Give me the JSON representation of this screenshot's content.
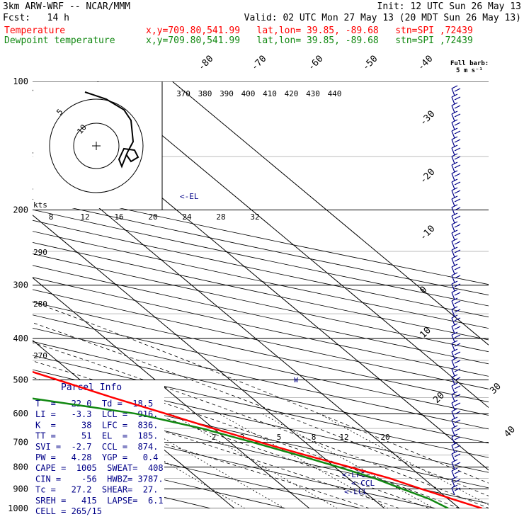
{
  "header": {
    "model": "3km ARW-WRF -- NCAR/MMM",
    "init": "Init: 12 UTC Sun 26 May 13",
    "fcst": "Fcst:   14 h",
    "valid": "Valid: 02 UTC Mon 27 May 13 (20 MDT Sun 26 May 13)",
    "temp_label": "Temperature",
    "dew_label": "Dewpoint temperature",
    "location": "x,y=709.80,541.99   lat,lon= 39.85, -89.68   stn=SPI ,72439"
  },
  "colors": {
    "temperature": "#ff0000",
    "dewpoint": "#118811",
    "text": "#000000",
    "info": "#000088",
    "wind": "#000088"
  },
  "parcel_info": {
    "title": "Parcel Info",
    "rows": [
      "T  =   22.0  Td =  18.5",
      "LI =   -3.3  LCL =  916.",
      "K  =     38  LFC =  836.",
      "TT =     51  EL  =  185.",
      "SVI =  -2.7  CCL =  874.",
      "PW =   4.28  YGP =   0.4",
      "CAPE =  1005  SWEAT=  408",
      "CIN =    -56  HWBZ= 3787.",
      "Tc =   27.2  SHEAR=  27.",
      "SREH =   415  LAPSE=  6.1",
      "CELL = 265/15"
    ]
  },
  "level_labels": {
    "el": "<-EL",
    "lfc": "<-LFC",
    "ccl": "<-CCL",
    "lcl": "<-LCL"
  },
  "barb_legend": {
    "title": "Full barb:",
    "value": "5 m s⁻¹"
  },
  "hodograph": {
    "units": "kts",
    "rings": [
      "5",
      "10"
    ]
  },
  "chart_data": {
    "type": "skew-t",
    "pressure_levels": [
      100,
      200,
      300,
      400,
      500,
      600,
      700,
      800,
      900,
      1000
    ],
    "isotherm_labels": [
      "-80",
      "-70",
      "-60",
      "-50",
      "-40",
      "-30",
      "-20",
      "-10",
      "0",
      "10",
      "20",
      "30",
      "40"
    ],
    "theta_labels": [
      "370",
      "380",
      "390",
      "400",
      "410",
      "420",
      "430",
      "440"
    ],
    "theta_lower_labels": [
      "290",
      "280",
      "270"
    ],
    "mixing_ratio_top_labels": [
      "8",
      "12",
      "16",
      "20",
      "24",
      "28",
      "32"
    ],
    "mixing_ratio_lower_labels": [
      "2",
      "3",
      "5",
      "8",
      "12",
      "20"
    ],
    "temperature": [
      {
        "p": 1000,
        "t": 23
      },
      {
        "p": 980,
        "t": 22
      },
      {
        "p": 950,
        "t": 20.5
      },
      {
        "p": 925,
        "t": 19.3
      },
      {
        "p": 900,
        "t": 18
      },
      {
        "p": 870,
        "t": 16.5
      },
      {
        "p": 850,
        "t": 15.5
      },
      {
        "p": 800,
        "t": 12
      },
      {
        "p": 750,
        "t": 8
      },
      {
        "p": 700,
        "t": 4
      },
      {
        "p": 650,
        "t": 0
      },
      {
        "p": 600,
        "t": -4
      },
      {
        "p": 550,
        "t": -8.5
      },
      {
        "p": 500,
        "t": -13
      },
      {
        "p": 450,
        "t": -18
      },
      {
        "p": 400,
        "t": -25
      },
      {
        "p": 350,
        "t": -32
      },
      {
        "p": 300,
        "t": -41
      },
      {
        "p": 250,
        "t": -52
      },
      {
        "p": 200,
        "t": -62
      },
      {
        "p": 185,
        "t": -64
      },
      {
        "p": 170,
        "t": -65
      },
      {
        "p": 160,
        "t": -65
      },
      {
        "p": 140,
        "t": -62
      },
      {
        "p": 120,
        "t": -60
      },
      {
        "p": 100,
        "t": -60
      }
    ],
    "dewpoint": [
      {
        "p": 1000,
        "t": 18.5
      },
      {
        "p": 950,
        "t": 17.5
      },
      {
        "p": 925,
        "t": 16.5
      },
      {
        "p": 900,
        "t": 15.5
      },
      {
        "p": 850,
        "t": 13.5
      },
      {
        "p": 800,
        "t": 10.5
      },
      {
        "p": 750,
        "t": 7
      },
      {
        "p": 700,
        "t": 3
      },
      {
        "p": 650,
        "t": -1.5
      },
      {
        "p": 600,
        "t": -8
      },
      {
        "p": 550,
        "t": -20
      },
      {
        "p": 500,
        "t": -26
      },
      {
        "p": 450,
        "t": -27
      },
      {
        "p": 420,
        "t": -27
      },
      {
        "p": 400,
        "t": -29
      },
      {
        "p": 350,
        "t": -38
      },
      {
        "p": 300,
        "t": -49
      },
      {
        "p": 250,
        "t": -61
      },
      {
        "p": 200,
        "t": -71
      },
      {
        "p": 170,
        "t": -70
      },
      {
        "p": 150,
        "t": -64
      },
      {
        "p": 140,
        "t": -63
      },
      {
        "p": 120,
        "t": -67
      },
      {
        "p": 110,
        "t": -74
      },
      {
        "p": 100,
        "t": -78
      }
    ]
  }
}
